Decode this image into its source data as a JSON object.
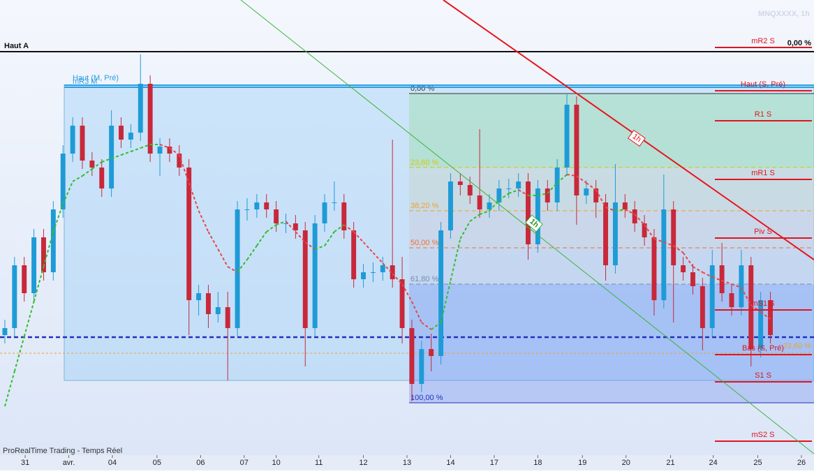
{
  "chart_data": {
    "type": "candlestick",
    "title": "MNQXXXX, 1h",
    "source": "ProRealTime Trading - Temps Réel",
    "xlim": [
      -0.5,
      83.5
    ],
    "ylim": [
      0,
      652
    ],
    "xticks": [
      {
        "value": 2.1,
        "label": "31"
      },
      {
        "value": 6.6,
        "label": "avr."
      },
      {
        "value": 11.1,
        "label": "04"
      },
      {
        "value": 15.7,
        "label": "05"
      },
      {
        "value": 20.2,
        "label": "06"
      },
      {
        "value": 24.7,
        "label": "07"
      },
      {
        "value": 28.0,
        "label": "10"
      },
      {
        "value": 32.4,
        "label": "11"
      },
      {
        "value": 37.0,
        "label": "12"
      },
      {
        "value": 41.5,
        "label": "13"
      },
      {
        "value": 46.0,
        "label": "14"
      },
      {
        "value": 50.5,
        "label": "17"
      },
      {
        "value": 55.0,
        "label": "18"
      },
      {
        "value": 59.6,
        "label": "19"
      },
      {
        "value": 64.1,
        "label": "20"
      },
      {
        "value": 68.7,
        "label": "21"
      },
      {
        "value": 73.1,
        "label": "24"
      },
      {
        "value": 77.7,
        "label": "25"
      },
      {
        "value": 82.2,
        "label": "26"
      }
    ],
    "open": [
      172,
      182,
      272,
      232,
      312,
      262,
      352,
      432,
      472,
      422,
      412,
      382,
      472,
      452,
      462,
      532,
      432,
      442,
      432,
      412,
      222,
      232,
      202,
      212,
      182,
      352,
      352,
      362,
      352,
      332,
      332,
      322,
      182,
      332,
      362,
      362,
      322,
      252,
      262,
      262,
      272,
      252,
      182,
      102,
      152,
      142,
      322,
      392,
      387,
      372,
      352,
      362,
      382,
      382,
      392,
      302,
      382,
      362,
      412,
      502,
      372,
      382,
      362,
      272,
      362,
      352,
      332,
      312,
      222,
      352,
      272,
      262,
      242,
      182,
      272,
      232,
      212,
      272,
      152,
      222
    ],
    "high": [
      194,
      284,
      284,
      324,
      324,
      364,
      444,
      484,
      484,
      434,
      424,
      494,
      484,
      474,
      574,
      544,
      454,
      454,
      444,
      424,
      244,
      244,
      234,
      234,
      364,
      368,
      374,
      374,
      364,
      346,
      344,
      334,
      344,
      374,
      392,
      374,
      334,
      274,
      276,
      284,
      452,
      284,
      194,
      164,
      174,
      334,
      404,
      404,
      399,
      467,
      374,
      394,
      396,
      404,
      404,
      394,
      394,
      424,
      517,
      514,
      394,
      394,
      374,
      417,
      374,
      364,
      344,
      324,
      402,
      364,
      284,
      274,
      254,
      294,
      304,
      244,
      294,
      284,
      234,
      234
    ],
    "low": [
      160,
      170,
      220,
      220,
      250,
      250,
      340,
      420,
      410,
      400,
      370,
      370,
      440,
      440,
      450,
      420,
      400,
      420,
      400,
      172,
      200,
      182,
      190,
      107,
      170,
      336,
      340,
      340,
      320,
      318,
      310,
      127,
      170,
      320,
      350,
      310,
      240,
      240,
      248,
      250,
      240,
      160,
      77,
      90,
      120,
      130,
      310,
      372,
      360,
      340,
      340,
      350,
      368,
      370,
      280,
      290,
      350,
      350,
      400,
      330,
      360,
      340,
      250,
      260,
      340,
      320,
      300,
      200,
      210,
      190,
      250,
      230,
      150,
      170,
      220,
      200,
      200,
      127,
      140,
      160
    ],
    "close": [
      182,
      272,
      232,
      312,
      262,
      352,
      432,
      472,
      422,
      412,
      382,
      472,
      452,
      462,
      532,
      432,
      442,
      432,
      412,
      222,
      232,
      202,
      212,
      182,
      352,
      352,
      362,
      352,
      332,
      332,
      322,
      182,
      332,
      362,
      362,
      322,
      252,
      262,
      262,
      272,
      252,
      182,
      102,
      152,
      142,
      322,
      392,
      387,
      372,
      352,
      362,
      382,
      382,
      392,
      302,
      382,
      362,
      412,
      502,
      372,
      382,
      362,
      272,
      362,
      352,
      332,
      312,
      222,
      352,
      272,
      262,
      242,
      182,
      272,
      232,
      212,
      272,
      152,
      222,
      172
    ],
    "up_color": "#1e9bd7",
    "down_color": "#c8283a",
    "ma": {
      "values": [
        70,
        120,
        170,
        220,
        270,
        320,
        360,
        392,
        400,
        410,
        420,
        425,
        430,
        435,
        440,
        445,
        445,
        440,
        430,
        390,
        350,
        320,
        295,
        270,
        262,
        280,
        300,
        320,
        330,
        335,
        320,
        305,
        295,
        300,
        320,
        330,
        320,
        305,
        290,
        275,
        260,
        245,
        220,
        190,
        180,
        190,
        250,
        310,
        335,
        345,
        350,
        365,
        375,
        380,
        372,
        372,
        375,
        390,
        402,
        400,
        390,
        380,
        355,
        350,
        352,
        345,
        330,
        310,
        305,
        300,
        290,
        270,
        262,
        255,
        250,
        245,
        240,
        215,
        205,
        195
      ],
      "up_color": "#2fbf2f",
      "down_color": "#e84848"
    },
    "levels": [
      {
        "label": "mR2 S",
        "value": 584
      },
      {
        "label": "Haut (S, Pré)",
        "value": 522
      },
      {
        "label": "R1 S",
        "value": 479
      },
      {
        "label": "mR1 S",
        "value": 395
      },
      {
        "label": "Piv S",
        "value": 311
      },
      {
        "label": "mS1 S",
        "value": 208
      },
      {
        "label": "Bas (S, Pré)",
        "value": 144
      },
      {
        "label": "S1 S",
        "value": 105
      },
      {
        "label": "mS2 S",
        "value": 20
      }
    ],
    "fib": [
      {
        "label": "0,00 %",
        "value": 518,
        "color": "#333333"
      },
      {
        "label": "23,60 %",
        "value": 412,
        "color": "#d8c800"
      },
      {
        "label": "38,20 %",
        "value": 350,
        "color": "#f0a030"
      },
      {
        "label": "50,00 %",
        "value": 297,
        "color": "#f07030"
      },
      {
        "label": "61,80 %",
        "value": 245,
        "color": "#7090b0"
      },
      {
        "label": "100,00 %",
        "value": 75,
        "color": "#2030c0"
      }
    ],
    "annotations": [
      {
        "label": "Haut A",
        "value": 578
      },
      {
        "label": "Haut (M, Pré)",
        "value": 532
      },
      {
        "label": "mR3 M",
        "value": 527
      },
      {
        "label": "0,00 %",
        "value": 584
      },
      {
        "label": "23,60 %",
        "value": 146
      }
    ],
    "last_price": 169,
    "trend_labels": [
      "1h",
      "1h"
    ]
  }
}
